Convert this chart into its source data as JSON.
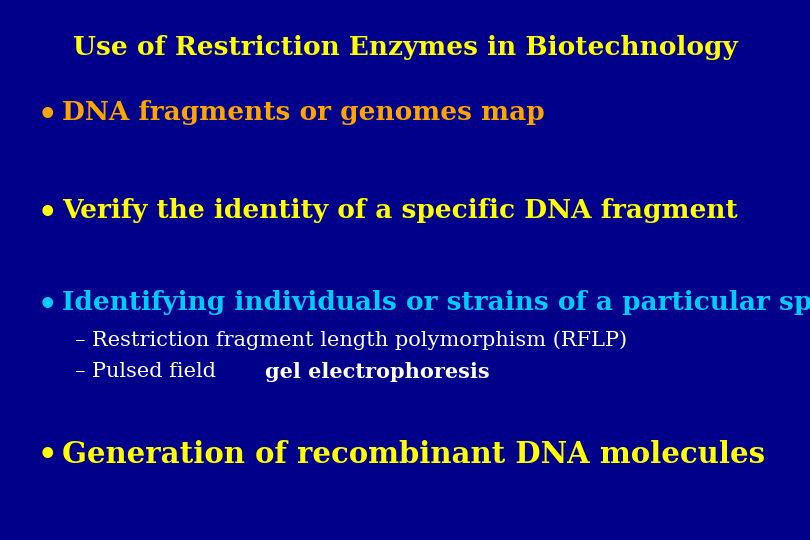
{
  "title": "Use of Restriction Enzymes in Biotechnology",
  "title_color": "#FFFF00",
  "background_color": "#00008B",
  "bullet1_text": "DNA fragments or genomes map",
  "bullet1_color": "#FFA500",
  "bullet2_text": "Verify the identity of a specific DNA fragment",
  "bullet2_color": "#FFFF00",
  "bullet3_text": "Identifying individuals or strains of a particular species",
  "bullet3_color": "#00CCFF",
  "sub1_text": "– Restriction fragment length polymorphism (RFLP)",
  "sub1_color": "#FFFFFF",
  "sub2_plain": "– Pulsed field ",
  "sub2_bold": "gel electrophoresis",
  "sub2_color": "#FFFFFF",
  "bullet4_text": "Generation of recombinant DNA molecules",
  "bullet4_color": "#FFFF00",
  "figsize": [
    8.1,
    5.4
  ],
  "dpi": 100
}
